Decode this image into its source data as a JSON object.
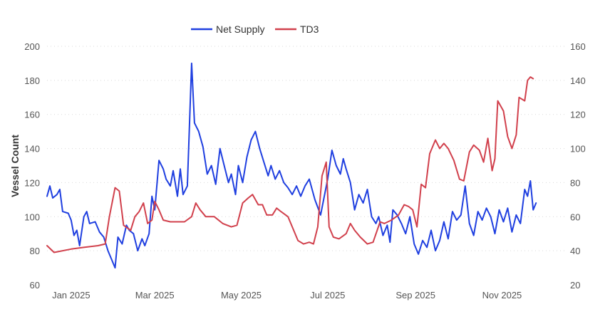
{
  "chart_data": {
    "type": "line",
    "title": "",
    "ylabel": "Vessel Count",
    "y2label": "",
    "xlabel": "",
    "x_range": [
      "2024-12-15",
      "2025-12-15"
    ],
    "ylim": [
      60,
      200
    ],
    "y2lim": [
      20,
      160
    ],
    "y_ticks": [
      60,
      80,
      100,
      120,
      140,
      160,
      180,
      200
    ],
    "y2_ticks": [
      20,
      40,
      60,
      80,
      100,
      120,
      140,
      160
    ],
    "x_ticks": [
      {
        "date": "2025-01-01",
        "label": "Jan 2025"
      },
      {
        "date": "2025-03-01",
        "label": "Mar 2025"
      },
      {
        "date": "2025-05-01",
        "label": "May 2025"
      },
      {
        "date": "2025-07-01",
        "label": "Jul 2025"
      },
      {
        "date": "2025-09-01",
        "label": "Sep 2025"
      },
      {
        "date": "2025-11-01",
        "label": "Nov 2025"
      }
    ],
    "legend_position": "top-center",
    "series": [
      {
        "name": "Net Supply",
        "axis": "left",
        "color": "#1f3fe0",
        "points": [
          [
            "2024-12-15",
            112
          ],
          [
            "2024-12-17",
            118
          ],
          [
            "2024-12-19",
            111
          ],
          [
            "2024-12-22",
            113
          ],
          [
            "2024-12-24",
            116
          ],
          [
            "2024-12-26",
            103
          ],
          [
            "2024-12-30",
            102
          ],
          [
            "2025-01-01",
            98
          ],
          [
            "2025-01-03",
            89
          ],
          [
            "2025-01-05",
            92
          ],
          [
            "2025-01-07",
            83
          ],
          [
            "2025-01-10",
            100
          ],
          [
            "2025-01-12",
            103
          ],
          [
            "2025-01-14",
            96
          ],
          [
            "2025-01-18",
            97
          ],
          [
            "2025-01-21",
            91
          ],
          [
            "2025-01-24",
            88
          ],
          [
            "2025-01-27",
            80
          ],
          [
            "2025-01-30",
            74
          ],
          [
            "2025-02-01",
            70
          ],
          [
            "2025-02-03",
            88
          ],
          [
            "2025-02-06",
            84
          ],
          [
            "2025-02-09",
            95
          ],
          [
            "2025-02-11",
            92
          ],
          [
            "2025-02-14",
            90
          ],
          [
            "2025-02-17",
            80
          ],
          [
            "2025-02-20",
            87
          ],
          [
            "2025-02-22",
            83
          ],
          [
            "2025-02-25",
            90
          ],
          [
            "2025-02-27",
            112
          ],
          [
            "2025-03-01",
            104
          ],
          [
            "2025-03-04",
            133
          ],
          [
            "2025-03-07",
            128
          ],
          [
            "2025-03-09",
            122
          ],
          [
            "2025-03-12",
            118
          ],
          [
            "2025-03-14",
            127
          ],
          [
            "2025-03-17",
            112
          ],
          [
            "2025-03-19",
            128
          ],
          [
            "2025-03-21",
            113
          ],
          [
            "2025-03-24",
            118
          ],
          [
            "2025-03-27",
            190
          ],
          [
            "2025-03-29",
            155
          ],
          [
            "2025-04-01",
            150
          ],
          [
            "2025-04-04",
            141
          ],
          [
            "2025-04-07",
            125
          ],
          [
            "2025-04-10",
            130
          ],
          [
            "2025-04-13",
            119
          ],
          [
            "2025-04-16",
            140
          ],
          [
            "2025-04-19",
            130
          ],
          [
            "2025-04-22",
            120
          ],
          [
            "2025-04-24",
            125
          ],
          [
            "2025-04-27",
            113
          ],
          [
            "2025-04-29",
            130
          ],
          [
            "2025-05-02",
            120
          ],
          [
            "2025-05-05",
            135
          ],
          [
            "2025-05-08",
            145
          ],
          [
            "2025-05-11",
            150
          ],
          [
            "2025-05-14",
            140
          ],
          [
            "2025-05-17",
            132
          ],
          [
            "2025-05-20",
            124
          ],
          [
            "2025-05-22",
            130
          ],
          [
            "2025-05-25",
            122
          ],
          [
            "2025-05-28",
            127
          ],
          [
            "2025-05-31",
            120
          ],
          [
            "2025-06-03",
            117
          ],
          [
            "2025-06-06",
            113
          ],
          [
            "2025-06-09",
            118
          ],
          [
            "2025-06-12",
            112
          ],
          [
            "2025-06-15",
            118
          ],
          [
            "2025-06-18",
            122
          ],
          [
            "2025-06-22",
            110
          ],
          [
            "2025-06-26",
            101
          ],
          [
            "2025-07-01",
            122
          ],
          [
            "2025-07-04",
            139
          ],
          [
            "2025-07-07",
            130
          ],
          [
            "2025-07-10",
            125
          ],
          [
            "2025-07-12",
            134
          ],
          [
            "2025-07-14",
            128
          ],
          [
            "2025-07-17",
            120
          ],
          [
            "2025-07-20",
            104
          ],
          [
            "2025-07-23",
            113
          ],
          [
            "2025-07-26",
            108
          ],
          [
            "2025-07-29",
            116
          ],
          [
            "2025-08-01",
            100
          ],
          [
            "2025-08-04",
            96
          ],
          [
            "2025-08-06",
            100
          ],
          [
            "2025-08-09",
            89
          ],
          [
            "2025-08-12",
            95
          ],
          [
            "2025-08-14",
            85
          ],
          [
            "2025-08-16",
            104
          ],
          [
            "2025-08-19",
            101
          ],
          [
            "2025-08-22",
            96
          ],
          [
            "2025-08-25",
            90
          ],
          [
            "2025-08-28",
            100
          ],
          [
            "2025-08-31",
            84
          ],
          [
            "2025-09-03",
            78
          ],
          [
            "2025-09-06",
            86
          ],
          [
            "2025-09-09",
            82
          ],
          [
            "2025-09-12",
            92
          ],
          [
            "2025-09-15",
            80
          ],
          [
            "2025-09-18",
            86
          ],
          [
            "2025-09-21",
            97
          ],
          [
            "2025-09-24",
            87
          ],
          [
            "2025-09-27",
            103
          ],
          [
            "2025-09-30",
            98
          ],
          [
            "2025-10-03",
            101
          ],
          [
            "2025-10-06",
            118
          ],
          [
            "2025-10-09",
            96
          ],
          [
            "2025-10-12",
            89
          ],
          [
            "2025-10-15",
            103
          ],
          [
            "2025-10-18",
            98
          ],
          [
            "2025-10-21",
            105
          ],
          [
            "2025-10-24",
            100
          ],
          [
            "2025-10-27",
            90
          ],
          [
            "2025-10-30",
            104
          ],
          [
            "2025-11-02",
            97
          ],
          [
            "2025-11-05",
            105
          ],
          [
            "2025-11-08",
            91
          ],
          [
            "2025-11-11",
            101
          ],
          [
            "2025-11-14",
            96
          ],
          [
            "2025-11-17",
            116
          ],
          [
            "2025-11-19",
            112
          ],
          [
            "2025-11-21",
            121
          ],
          [
            "2025-11-23",
            104
          ],
          [
            "2025-11-25",
            108
          ]
        ]
      },
      {
        "name": "TD3",
        "axis": "right",
        "color": "#d1404c",
        "points": [
          [
            "2024-12-15",
            43
          ],
          [
            "2024-12-20",
            39
          ],
          [
            "2025-01-01",
            41
          ],
          [
            "2025-01-10",
            42
          ],
          [
            "2025-01-20",
            43
          ],
          [
            "2025-01-25",
            44
          ],
          [
            "2025-01-28",
            60
          ],
          [
            "2025-02-01",
            77
          ],
          [
            "2025-02-04",
            75
          ],
          [
            "2025-02-07",
            55
          ],
          [
            "2025-02-12",
            52
          ],
          [
            "2025-02-15",
            60
          ],
          [
            "2025-02-18",
            63
          ],
          [
            "2025-02-21",
            68
          ],
          [
            "2025-02-24",
            56
          ],
          [
            "2025-02-27",
            58
          ],
          [
            "2025-03-01",
            69
          ],
          [
            "2025-03-04",
            64
          ],
          [
            "2025-03-07",
            58
          ],
          [
            "2025-03-12",
            57
          ],
          [
            "2025-03-22",
            57
          ],
          [
            "2025-03-27",
            60
          ],
          [
            "2025-03-30",
            68
          ],
          [
            "2025-04-02",
            64
          ],
          [
            "2025-04-06",
            60
          ],
          [
            "2025-04-12",
            60
          ],
          [
            "2025-04-18",
            56
          ],
          [
            "2025-04-24",
            54
          ],
          [
            "2025-04-28",
            55
          ],
          [
            "2025-05-02",
            68
          ],
          [
            "2025-05-06",
            71
          ],
          [
            "2025-05-09",
            73
          ],
          [
            "2025-05-13",
            67
          ],
          [
            "2025-05-16",
            67
          ],
          [
            "2025-05-19",
            61
          ],
          [
            "2025-05-23",
            61
          ],
          [
            "2025-05-26",
            65
          ],
          [
            "2025-05-29",
            63
          ],
          [
            "2025-06-03",
            60
          ],
          [
            "2025-06-07",
            52
          ],
          [
            "2025-06-10",
            46
          ],
          [
            "2025-06-14",
            44
          ],
          [
            "2025-06-18",
            45
          ],
          [
            "2025-06-21",
            44
          ],
          [
            "2025-06-24",
            54
          ],
          [
            "2025-06-27",
            84
          ],
          [
            "2025-06-30",
            92
          ],
          [
            "2025-07-02",
            54
          ],
          [
            "2025-07-05",
            48
          ],
          [
            "2025-07-09",
            47
          ],
          [
            "2025-07-14",
            50
          ],
          [
            "2025-07-17",
            56
          ],
          [
            "2025-07-20",
            52
          ],
          [
            "2025-07-24",
            48
          ],
          [
            "2025-07-29",
            44
          ],
          [
            "2025-08-02",
            45
          ],
          [
            "2025-08-07",
            57
          ],
          [
            "2025-08-10",
            56
          ],
          [
            "2025-08-15",
            58
          ],
          [
            "2025-08-20",
            61
          ],
          [
            "2025-08-24",
            67
          ],
          [
            "2025-08-27",
            66
          ],
          [
            "2025-08-30",
            64
          ],
          [
            "2025-09-02",
            54
          ],
          [
            "2025-09-05",
            79
          ],
          [
            "2025-09-08",
            77
          ],
          [
            "2025-09-11",
            97
          ],
          [
            "2025-09-15",
            105
          ],
          [
            "2025-09-18",
            100
          ],
          [
            "2025-09-21",
            103
          ],
          [
            "2025-09-24",
            100
          ],
          [
            "2025-09-28",
            93
          ],
          [
            "2025-10-02",
            82
          ],
          [
            "2025-10-05",
            81
          ],
          [
            "2025-10-09",
            98
          ],
          [
            "2025-10-12",
            102
          ],
          [
            "2025-10-16",
            99
          ],
          [
            "2025-10-19",
            92
          ],
          [
            "2025-10-22",
            106
          ],
          [
            "2025-10-25",
            87
          ],
          [
            "2025-10-27",
            94
          ],
          [
            "2025-10-29",
            128
          ],
          [
            "2025-11-02",
            122
          ],
          [
            "2025-11-05",
            107
          ],
          [
            "2025-11-08",
            100
          ],
          [
            "2025-11-11",
            108
          ],
          [
            "2025-11-13",
            130
          ],
          [
            "2025-11-17",
            128
          ],
          [
            "2025-11-19",
            140
          ],
          [
            "2025-11-21",
            142
          ],
          [
            "2025-11-23",
            141
          ]
        ]
      }
    ]
  }
}
